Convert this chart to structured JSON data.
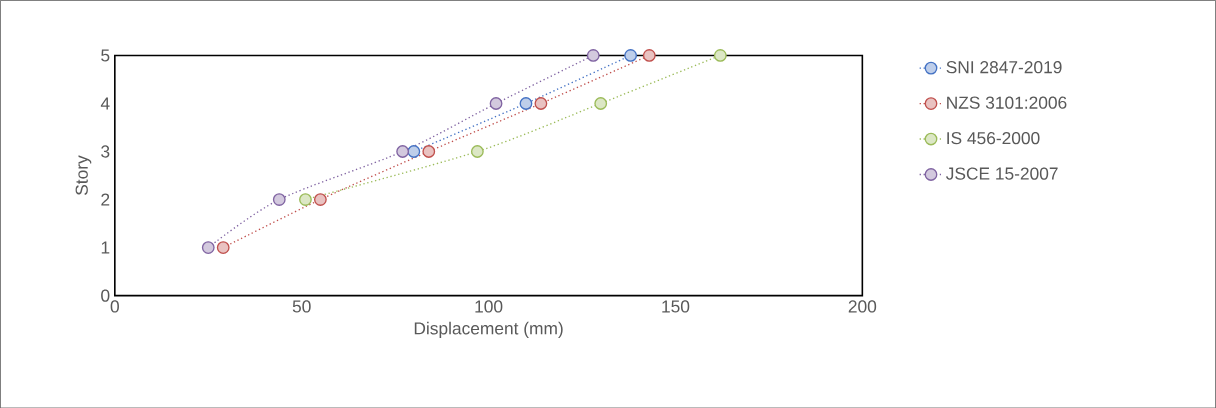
{
  "chart_data": {
    "type": "line",
    "xlabel": "Displacement (mm)",
    "ylabel": "Story",
    "xlim": [
      0,
      200
    ],
    "ylim": [
      0,
      5
    ],
    "xticks": [
      0,
      50,
      100,
      150,
      200
    ],
    "yticks": [
      0,
      1,
      2,
      3,
      4,
      5
    ],
    "marker": "circle",
    "line_style": "dotted",
    "legend": "right",
    "series": [
      {
        "name": "SNI 2847-2019",
        "color": "#4472c4",
        "x": [
          null,
          null,
          80,
          110,
          138
        ],
        "values": [
          null,
          null,
          3,
          4,
          5
        ]
      },
      {
        "name": "NZS 3101:2006",
        "color": "#c0504d",
        "x": [
          29,
          55,
          84,
          114,
          143
        ],
        "values": [
          1,
          2,
          3,
          4,
          5
        ]
      },
      {
        "name": "IS 456-2000",
        "color": "#9bbb59",
        "x": [
          null,
          51,
          97,
          130,
          162
        ],
        "values": [
          null,
          2,
          3,
          4,
          5
        ]
      },
      {
        "name": "JSCE 15-2007",
        "color": "#8064a2",
        "x": [
          25,
          44,
          77,
          102,
          128
        ],
        "values": [
          1,
          2,
          3,
          4,
          5
        ]
      }
    ]
  }
}
